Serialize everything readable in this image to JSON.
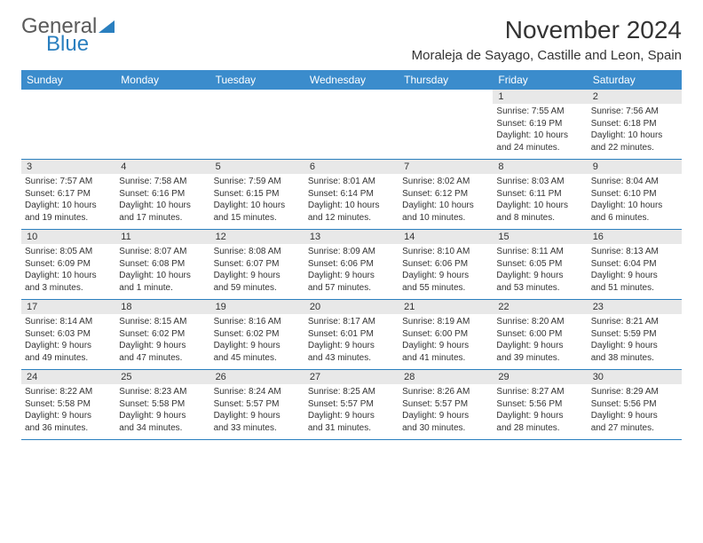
{
  "logo": {
    "text1": "General",
    "text2": "Blue"
  },
  "title": "November 2024",
  "location": "Moraleja de Sayago, Castille and Leon, Spain",
  "colors": {
    "header_bg": "#3b8ccc",
    "header_text": "#ffffff",
    "daynum_bg": "#e8e8e8",
    "border": "#2a7fbf",
    "logo_gray": "#5a5a5a",
    "logo_blue": "#2a7fbf"
  },
  "day_names": [
    "Sunday",
    "Monday",
    "Tuesday",
    "Wednesday",
    "Thursday",
    "Friday",
    "Saturday"
  ],
  "weeks": [
    [
      null,
      null,
      null,
      null,
      null,
      {
        "n": "1",
        "sr": "Sunrise: 7:55 AM",
        "ss": "Sunset: 6:19 PM",
        "d1": "Daylight: 10 hours",
        "d2": "and 24 minutes."
      },
      {
        "n": "2",
        "sr": "Sunrise: 7:56 AM",
        "ss": "Sunset: 6:18 PM",
        "d1": "Daylight: 10 hours",
        "d2": "and 22 minutes."
      }
    ],
    [
      {
        "n": "3",
        "sr": "Sunrise: 7:57 AM",
        "ss": "Sunset: 6:17 PM",
        "d1": "Daylight: 10 hours",
        "d2": "and 19 minutes."
      },
      {
        "n": "4",
        "sr": "Sunrise: 7:58 AM",
        "ss": "Sunset: 6:16 PM",
        "d1": "Daylight: 10 hours",
        "d2": "and 17 minutes."
      },
      {
        "n": "5",
        "sr": "Sunrise: 7:59 AM",
        "ss": "Sunset: 6:15 PM",
        "d1": "Daylight: 10 hours",
        "d2": "and 15 minutes."
      },
      {
        "n": "6",
        "sr": "Sunrise: 8:01 AM",
        "ss": "Sunset: 6:14 PM",
        "d1": "Daylight: 10 hours",
        "d2": "and 12 minutes."
      },
      {
        "n": "7",
        "sr": "Sunrise: 8:02 AM",
        "ss": "Sunset: 6:12 PM",
        "d1": "Daylight: 10 hours",
        "d2": "and 10 minutes."
      },
      {
        "n": "8",
        "sr": "Sunrise: 8:03 AM",
        "ss": "Sunset: 6:11 PM",
        "d1": "Daylight: 10 hours",
        "d2": "and 8 minutes."
      },
      {
        "n": "9",
        "sr": "Sunrise: 8:04 AM",
        "ss": "Sunset: 6:10 PM",
        "d1": "Daylight: 10 hours",
        "d2": "and 6 minutes."
      }
    ],
    [
      {
        "n": "10",
        "sr": "Sunrise: 8:05 AM",
        "ss": "Sunset: 6:09 PM",
        "d1": "Daylight: 10 hours",
        "d2": "and 3 minutes."
      },
      {
        "n": "11",
        "sr": "Sunrise: 8:07 AM",
        "ss": "Sunset: 6:08 PM",
        "d1": "Daylight: 10 hours",
        "d2": "and 1 minute."
      },
      {
        "n": "12",
        "sr": "Sunrise: 8:08 AM",
        "ss": "Sunset: 6:07 PM",
        "d1": "Daylight: 9 hours",
        "d2": "and 59 minutes."
      },
      {
        "n": "13",
        "sr": "Sunrise: 8:09 AM",
        "ss": "Sunset: 6:06 PM",
        "d1": "Daylight: 9 hours",
        "d2": "and 57 minutes."
      },
      {
        "n": "14",
        "sr": "Sunrise: 8:10 AM",
        "ss": "Sunset: 6:06 PM",
        "d1": "Daylight: 9 hours",
        "d2": "and 55 minutes."
      },
      {
        "n": "15",
        "sr": "Sunrise: 8:11 AM",
        "ss": "Sunset: 6:05 PM",
        "d1": "Daylight: 9 hours",
        "d2": "and 53 minutes."
      },
      {
        "n": "16",
        "sr": "Sunrise: 8:13 AM",
        "ss": "Sunset: 6:04 PM",
        "d1": "Daylight: 9 hours",
        "d2": "and 51 minutes."
      }
    ],
    [
      {
        "n": "17",
        "sr": "Sunrise: 8:14 AM",
        "ss": "Sunset: 6:03 PM",
        "d1": "Daylight: 9 hours",
        "d2": "and 49 minutes."
      },
      {
        "n": "18",
        "sr": "Sunrise: 8:15 AM",
        "ss": "Sunset: 6:02 PM",
        "d1": "Daylight: 9 hours",
        "d2": "and 47 minutes."
      },
      {
        "n": "19",
        "sr": "Sunrise: 8:16 AM",
        "ss": "Sunset: 6:02 PM",
        "d1": "Daylight: 9 hours",
        "d2": "and 45 minutes."
      },
      {
        "n": "20",
        "sr": "Sunrise: 8:17 AM",
        "ss": "Sunset: 6:01 PM",
        "d1": "Daylight: 9 hours",
        "d2": "and 43 minutes."
      },
      {
        "n": "21",
        "sr": "Sunrise: 8:19 AM",
        "ss": "Sunset: 6:00 PM",
        "d1": "Daylight: 9 hours",
        "d2": "and 41 minutes."
      },
      {
        "n": "22",
        "sr": "Sunrise: 8:20 AM",
        "ss": "Sunset: 6:00 PM",
        "d1": "Daylight: 9 hours",
        "d2": "and 39 minutes."
      },
      {
        "n": "23",
        "sr": "Sunrise: 8:21 AM",
        "ss": "Sunset: 5:59 PM",
        "d1": "Daylight: 9 hours",
        "d2": "and 38 minutes."
      }
    ],
    [
      {
        "n": "24",
        "sr": "Sunrise: 8:22 AM",
        "ss": "Sunset: 5:58 PM",
        "d1": "Daylight: 9 hours",
        "d2": "and 36 minutes."
      },
      {
        "n": "25",
        "sr": "Sunrise: 8:23 AM",
        "ss": "Sunset: 5:58 PM",
        "d1": "Daylight: 9 hours",
        "d2": "and 34 minutes."
      },
      {
        "n": "26",
        "sr": "Sunrise: 8:24 AM",
        "ss": "Sunset: 5:57 PM",
        "d1": "Daylight: 9 hours",
        "d2": "and 33 minutes."
      },
      {
        "n": "27",
        "sr": "Sunrise: 8:25 AM",
        "ss": "Sunset: 5:57 PM",
        "d1": "Daylight: 9 hours",
        "d2": "and 31 minutes."
      },
      {
        "n": "28",
        "sr": "Sunrise: 8:26 AM",
        "ss": "Sunset: 5:57 PM",
        "d1": "Daylight: 9 hours",
        "d2": "and 30 minutes."
      },
      {
        "n": "29",
        "sr": "Sunrise: 8:27 AM",
        "ss": "Sunset: 5:56 PM",
        "d1": "Daylight: 9 hours",
        "d2": "and 28 minutes."
      },
      {
        "n": "30",
        "sr": "Sunrise: 8:29 AM",
        "ss": "Sunset: 5:56 PM",
        "d1": "Daylight: 9 hours",
        "d2": "and 27 minutes."
      }
    ]
  ]
}
